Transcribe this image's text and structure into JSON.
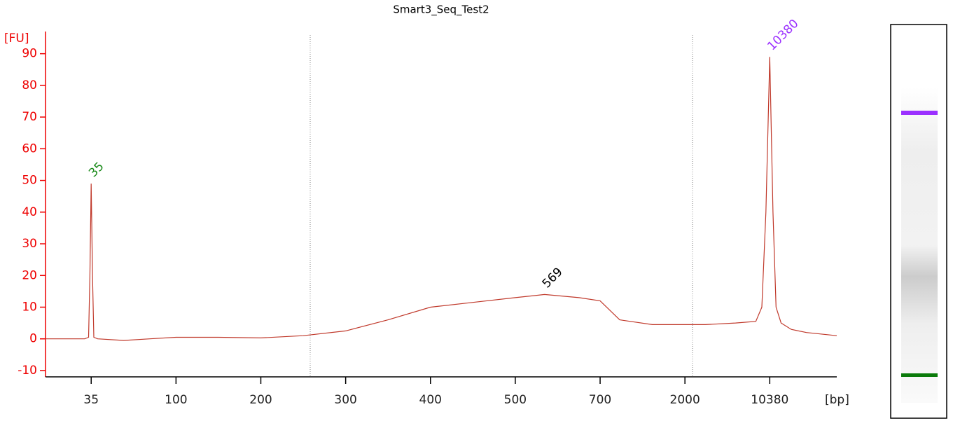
{
  "chart_data": {
    "type": "line",
    "title": "Smart3_Seq_Test2",
    "y_label": "[FU]",
    "x_label": "[bp]",
    "xlim": [
      0,
      17000
    ],
    "xticks": [
      35,
      100,
      200,
      300,
      400,
      500,
      700,
      2000,
      10380
    ],
    "ylim": [
      -12,
      97
    ],
    "yticks": [
      -10,
      0,
      10,
      20,
      30,
      40,
      50,
      60,
      70,
      80,
      90
    ],
    "series": [
      {
        "color": "#c0392b",
        "x": [
          0,
          20,
          30,
          33,
          34,
          35,
          36,
          37,
          40,
          60,
          80,
          100,
          150,
          200,
          250,
          300,
          350,
          400,
          450,
          500,
          569,
          650,
          700,
          1000,
          1500,
          2000,
          4000,
          7000,
          9000,
          9600,
          10000,
          10380,
          10700,
          11000,
          11500,
          12500,
          14000,
          17000
        ],
        "values": [
          0,
          0,
          0,
          0.5,
          20,
          49,
          20,
          0.5,
          0,
          -0.5,
          0,
          0.5,
          0.5,
          0.3,
          1,
          2.5,
          6,
          10,
          11.5,
          13,
          14,
          13,
          12,
          6,
          4.5,
          4.5,
          4.5,
          5,
          5.5,
          10,
          40,
          89,
          40,
          10,
          5,
          3,
          2,
          1
        ]
      }
    ],
    "peaks": [
      {
        "label": 35,
        "x": 35,
        "y": 49,
        "color": "#1a8a1a"
      },
      {
        "label": 569,
        "x": 569,
        "y": 14,
        "color": "#000000"
      },
      {
        "label": 10380,
        "x": 10380,
        "y": 89,
        "color": "#9b30ff"
      }
    ]
  }
}
